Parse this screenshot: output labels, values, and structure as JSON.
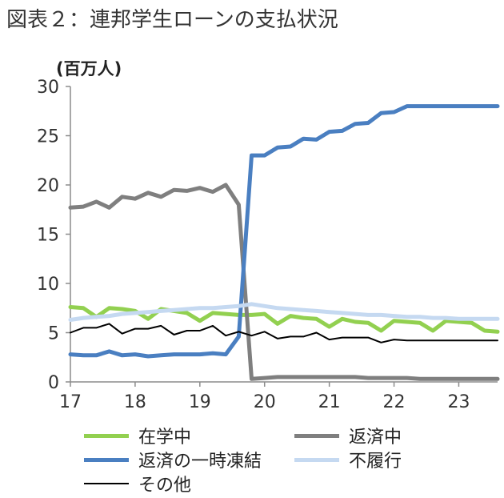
{
  "figure_title": "図表２：連邦学生ローンの支払状況",
  "chart_data": {
    "type": "line",
    "title": "図表２：連邦学生ローンの支払状況",
    "ylabel": "(百万人)",
    "xlabel": "",
    "ylim": [
      0,
      30
    ],
    "yticks": [
      0,
      5,
      10,
      15,
      20,
      25,
      30
    ],
    "xticks": [
      17,
      18,
      19,
      20,
      21,
      22,
      23
    ],
    "xlim": [
      17,
      23.6
    ],
    "legend_position": "bottom",
    "x": [
      17.0,
      17.2,
      17.4,
      17.6,
      17.8,
      18.0,
      18.2,
      18.4,
      18.6,
      18.8,
      19.0,
      19.2,
      19.4,
      19.6,
      19.8,
      20.0,
      20.2,
      20.4,
      20.6,
      20.8,
      21.0,
      21.2,
      21.4,
      21.6,
      21.8,
      22.0,
      22.2,
      22.4,
      22.6,
      22.8,
      23.0,
      23.2,
      23.4,
      23.6
    ],
    "series": [
      {
        "name": "在学中",
        "color": "#92d050",
        "width": 5,
        "values": [
          7.6,
          7.5,
          6.6,
          7.5,
          7.4,
          7.2,
          6.4,
          7.4,
          7.2,
          7.0,
          6.2,
          7.0,
          6.9,
          6.8,
          6.8,
          6.9,
          5.9,
          6.7,
          6.5,
          6.4,
          5.6,
          6.4,
          6.1,
          6.0,
          5.2,
          6.2,
          6.1,
          6.0,
          5.2,
          6.2,
          6.1,
          6.0,
          5.2,
          5.1
        ]
      },
      {
        "name": "返済中",
        "color": "#7f7f7f",
        "width": 5,
        "values": [
          17.7,
          17.8,
          18.3,
          17.7,
          18.8,
          18.6,
          19.2,
          18.8,
          19.5,
          19.4,
          19.7,
          19.3,
          20.0,
          18.0,
          0.3,
          0.4,
          0.5,
          0.5,
          0.5,
          0.5,
          0.5,
          0.5,
          0.5,
          0.4,
          0.4,
          0.4,
          0.4,
          0.3,
          0.3,
          0.3,
          0.3,
          0.3,
          0.3,
          0.3
        ]
      },
      {
        "name": "返済の一時凍結",
        "color": "#4a7fc1",
        "width": 5,
        "values": [
          2.8,
          2.7,
          2.7,
          3.1,
          2.7,
          2.8,
          2.6,
          2.7,
          2.8,
          2.8,
          2.8,
          2.9,
          2.8,
          4.6,
          23.0,
          23.0,
          23.8,
          23.9,
          24.7,
          24.6,
          25.4,
          25.5,
          26.2,
          26.3,
          27.3,
          27.4,
          28.0,
          28.0,
          28.0,
          28.0,
          28.0,
          28.0,
          28.0,
          28.0
        ]
      },
      {
        "name": "不履行",
        "color": "#c5d9f1",
        "width": 5,
        "values": [
          6.3,
          6.5,
          6.6,
          6.7,
          6.9,
          7.0,
          7.1,
          7.2,
          7.3,
          7.4,
          7.5,
          7.5,
          7.6,
          7.7,
          7.9,
          7.7,
          7.5,
          7.4,
          7.3,
          7.2,
          7.1,
          7.0,
          6.9,
          6.8,
          6.8,
          6.7,
          6.6,
          6.6,
          6.5,
          6.5,
          6.4,
          6.4,
          6.4,
          6.4
        ]
      },
      {
        "name": "その他",
        "color": "#000000",
        "width": 2,
        "values": [
          5.0,
          5.5,
          5.5,
          5.9,
          4.9,
          5.4,
          5.4,
          5.7,
          4.8,
          5.2,
          5.2,
          5.7,
          4.7,
          5.1,
          4.7,
          5.1,
          4.4,
          4.6,
          4.6,
          5.0,
          4.3,
          4.5,
          4.5,
          4.5,
          4.0,
          4.3,
          4.2,
          4.2,
          4.2,
          4.2,
          4.2,
          4.2,
          4.2,
          4.2
        ]
      }
    ]
  }
}
